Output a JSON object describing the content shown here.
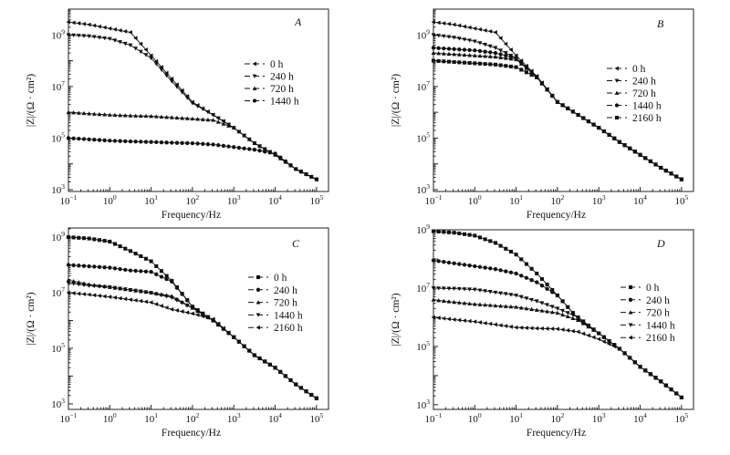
{
  "chart_data": [
    {
      "type": "line",
      "panel_label": "A",
      "xlabel": "Frequency/Hz",
      "ylabel": "|Z|/(Ω · cm²)",
      "xscale": "log",
      "yscale": "log",
      "xlim_log10": [
        -1,
        5.29
      ],
      "ylim_log10": [
        2.93,
        10.0
      ],
      "x_ticks_exp": [
        "−1",
        "0",
        "1",
        "2",
        "3",
        "4",
        "5"
      ],
      "y_ticks_exp": [
        "3",
        "5",
        "7",
        "9"
      ],
      "tick_base": "10",
      "legend_position": "right-middle",
      "x_log10_freq": [
        -1,
        -0.5,
        0,
        0.5,
        1,
        1.5,
        2,
        2.5,
        3,
        3.5,
        4,
        4.5,
        5
      ],
      "series": [
        {
          "name": "0 h",
          "marker": "triangle-left",
          "log10_Z": [
            9.5,
            9.4,
            9.25,
            9.1,
            8.2,
            7.3,
            6.4,
            5.9,
            5.4,
            4.8,
            4.35,
            3.8,
            3.4
          ]
        },
        {
          "name": "240 h",
          "marker": "triangle-down",
          "log10_Z": [
            9.0,
            8.95,
            8.85,
            8.6,
            8.1,
            7.2,
            6.35,
            5.9,
            5.4,
            4.8,
            4.35,
            3.8,
            3.4
          ]
        },
        {
          "name": "720 h",
          "marker": "triangle-up",
          "log10_Z": [
            6.0,
            5.95,
            5.9,
            5.87,
            5.85,
            5.8,
            5.75,
            5.7,
            5.4,
            4.8,
            4.35,
            3.8,
            3.4
          ]
        },
        {
          "name": "1440 h",
          "marker": "circle",
          "log10_Z": [
            5.0,
            4.95,
            4.9,
            4.87,
            4.85,
            4.82,
            4.8,
            4.75,
            4.65,
            4.55,
            4.4,
            3.8,
            3.4
          ]
        }
      ]
    },
    {
      "type": "line",
      "panel_label": "B",
      "xlabel": "Frequency/Hz",
      "ylabel": "|Z|/(Ω · cm²)",
      "xscale": "log",
      "yscale": "log",
      "xlim_log10": [
        -1,
        5.29
      ],
      "ylim_log10": [
        2.93,
        10.0
      ],
      "x_ticks_exp": [
        "−1",
        "0",
        "1",
        "2",
        "3",
        "4",
        "5"
      ],
      "y_ticks_exp": [
        "3",
        "5",
        "7",
        "9"
      ],
      "tick_base": "10",
      "legend_position": "right-middle",
      "x_log10_freq": [
        -1,
        -0.5,
        0,
        0.5,
        1,
        1.5,
        2,
        2.5,
        3,
        3.5,
        4,
        4.5,
        5
      ],
      "series": [
        {
          "name": "0 h",
          "marker": "triangle-left",
          "log10_Z": [
            9.5,
            9.4,
            9.25,
            9.1,
            8.2,
            7.4,
            6.4,
            5.9,
            5.4,
            4.85,
            4.35,
            3.85,
            3.4
          ]
        },
        {
          "name": "240 h",
          "marker": "triangle-down",
          "log10_Z": [
            9.0,
            8.9,
            8.75,
            8.5,
            8.1,
            7.38,
            6.4,
            5.9,
            5.4,
            4.85,
            4.35,
            3.85,
            3.4
          ]
        },
        {
          "name": "720 h",
          "marker": "triangle-up",
          "log10_Z": [
            8.3,
            8.25,
            8.2,
            8.15,
            8.05,
            7.37,
            6.4,
            5.9,
            5.4,
            4.85,
            4.35,
            3.85,
            3.4
          ]
        },
        {
          "name": "1440 h",
          "marker": "circle",
          "log10_Z": [
            8.5,
            8.45,
            8.4,
            8.3,
            8.1,
            7.37,
            6.4,
            5.9,
            5.4,
            4.85,
            4.35,
            3.85,
            3.4
          ]
        },
        {
          "name": "2160 h",
          "marker": "square",
          "log10_Z": [
            8.0,
            7.95,
            7.9,
            7.85,
            7.75,
            7.35,
            6.4,
            5.9,
            5.4,
            4.85,
            4.35,
            3.85,
            3.4
          ]
        }
      ]
    },
    {
      "type": "line",
      "panel_label": "C",
      "xlabel": "Frequency/Hz",
      "ylabel": "|Z|/(Ω · cm²)",
      "xscale": "log",
      "yscale": "log",
      "xlim_log10": [
        -1,
        5.29
      ],
      "ylim_log10": [
        2.8,
        9.33
      ],
      "x_ticks_exp": [
        "−1",
        "0",
        "1",
        "2",
        "3",
        "4",
        "5"
      ],
      "y_ticks_exp": [
        "3",
        "5",
        "7",
        "9"
      ],
      "tick_base": "10",
      "legend_position": "right-middle",
      "x_log10_freq": [
        -1,
        -0.5,
        0,
        0.5,
        1,
        1.5,
        2,
        2.5,
        3,
        3.5,
        4,
        4.5,
        5
      ],
      "series": [
        {
          "name": "0 h",
          "marker": "square",
          "log10_Z": [
            9.0,
            8.95,
            8.84,
            8.5,
            8.13,
            7.43,
            6.5,
            6.0,
            5.4,
            4.75,
            4.3,
            3.7,
            3.2
          ]
        },
        {
          "name": "240 h",
          "marker": "circle",
          "log10_Z": [
            8.0,
            7.95,
            7.9,
            7.8,
            7.75,
            7.4,
            6.5,
            6.0,
            5.4,
            4.75,
            4.3,
            3.7,
            3.2
          ]
        },
        {
          "name": "720 h",
          "marker": "triangle-up",
          "log10_Z": [
            7.45,
            7.3,
            7.2,
            7.1,
            7.0,
            6.88,
            6.45,
            6.0,
            5.4,
            4.75,
            4.3,
            3.7,
            3.2
          ]
        },
        {
          "name": "1440 h",
          "marker": "triangle-down",
          "log10_Z": [
            7.35,
            7.25,
            7.2,
            7.1,
            7.0,
            6.82,
            6.45,
            6.0,
            5.4,
            4.75,
            4.3,
            3.7,
            3.2
          ]
        },
        {
          "name": "2160 h",
          "marker": "triangle-left",
          "log10_Z": [
            7.0,
            6.93,
            6.85,
            6.75,
            6.65,
            6.4,
            6.25,
            6.05,
            5.4,
            4.75,
            4.3,
            3.7,
            3.2
          ]
        }
      ]
    },
    {
      "type": "line",
      "panel_label": "D",
      "xlabel": "Frequency/Hz",
      "ylabel": "|Z|/(Ω · cm²)",
      "xscale": "log",
      "yscale": "log",
      "xlim_log10": [
        -1,
        5.29
      ],
      "ylim_log10": [
        2.84,
        9.0
      ],
      "x_ticks_exp": [
        "−1",
        "0",
        "1",
        "2",
        "3",
        "4",
        "5"
      ],
      "y_ticks_exp": [
        "3",
        "5",
        "7",
        "9"
      ],
      "tick_base": "10",
      "legend_position": "right-middle",
      "x_log10_freq": [
        -1,
        -0.5,
        0,
        0.5,
        1,
        1.5,
        2,
        2.5,
        3,
        3.5,
        4,
        4.5,
        5
      ],
      "series": [
        {
          "name": "0 h",
          "marker": "square",
          "log10_Z": [
            8.95,
            8.9,
            8.8,
            8.55,
            8.15,
            7.5,
            6.75,
            5.95,
            5.45,
            4.92,
            4.3,
            3.8,
            3.25
          ]
        },
        {
          "name": "240 h",
          "marker": "circle",
          "log10_Z": [
            7.95,
            7.85,
            7.75,
            7.65,
            7.5,
            7.2,
            6.75,
            5.95,
            5.45,
            4.92,
            4.3,
            3.8,
            3.25
          ]
        },
        {
          "name": "720 h",
          "marker": "triangle-up",
          "log10_Z": [
            6.6,
            6.52,
            6.45,
            6.4,
            6.35,
            6.25,
            6.15,
            5.9,
            5.45,
            4.92,
            4.3,
            3.8,
            3.25
          ]
        },
        {
          "name": "1440 h",
          "marker": "triangle-down",
          "log10_Z": [
            7.0,
            6.98,
            6.95,
            6.85,
            6.75,
            6.55,
            6.3,
            6.0,
            5.45,
            4.92,
            4.3,
            3.8,
            3.25
          ]
        },
        {
          "name": "2160 h",
          "marker": "triangle-left",
          "log10_Z": [
            6.0,
            5.92,
            5.85,
            5.75,
            5.65,
            5.62,
            5.6,
            5.5,
            5.25,
            4.92,
            4.3,
            3.8,
            3.25
          ]
        }
      ]
    }
  ]
}
